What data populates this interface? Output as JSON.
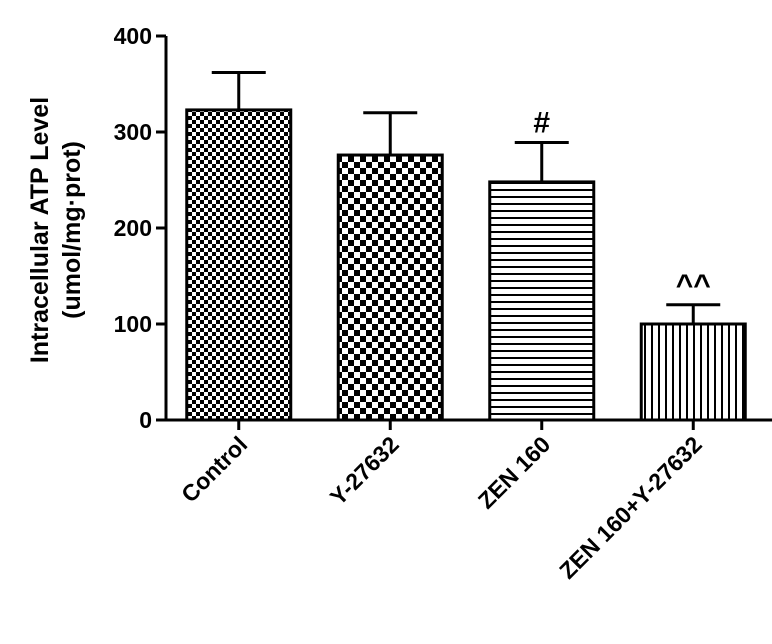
{
  "chart_data": {
    "type": "bar",
    "title": "",
    "xlabel": "",
    "ylabel_line1": "Intracellular ATP Level",
    "ylabel_line2": "(umol/mg·prot)",
    "ylim": [
      0,
      400
    ],
    "yticks": [
      0,
      100,
      200,
      300,
      400
    ],
    "categories": [
      "Control",
      "Y-27632",
      "ZEN 160",
      "ZEN 160+Y-27632"
    ],
    "values": [
      323,
      276,
      248,
      100
    ],
    "errors": [
      39,
      44,
      41,
      20
    ],
    "annotations": [
      "",
      "",
      "#",
      "^^"
    ],
    "patterns": [
      "fine-checker",
      "coarse-checker",
      "horizontal-lines",
      "vertical-lines"
    ],
    "bar_color": "#000000",
    "grid": false,
    "legend": "none"
  }
}
